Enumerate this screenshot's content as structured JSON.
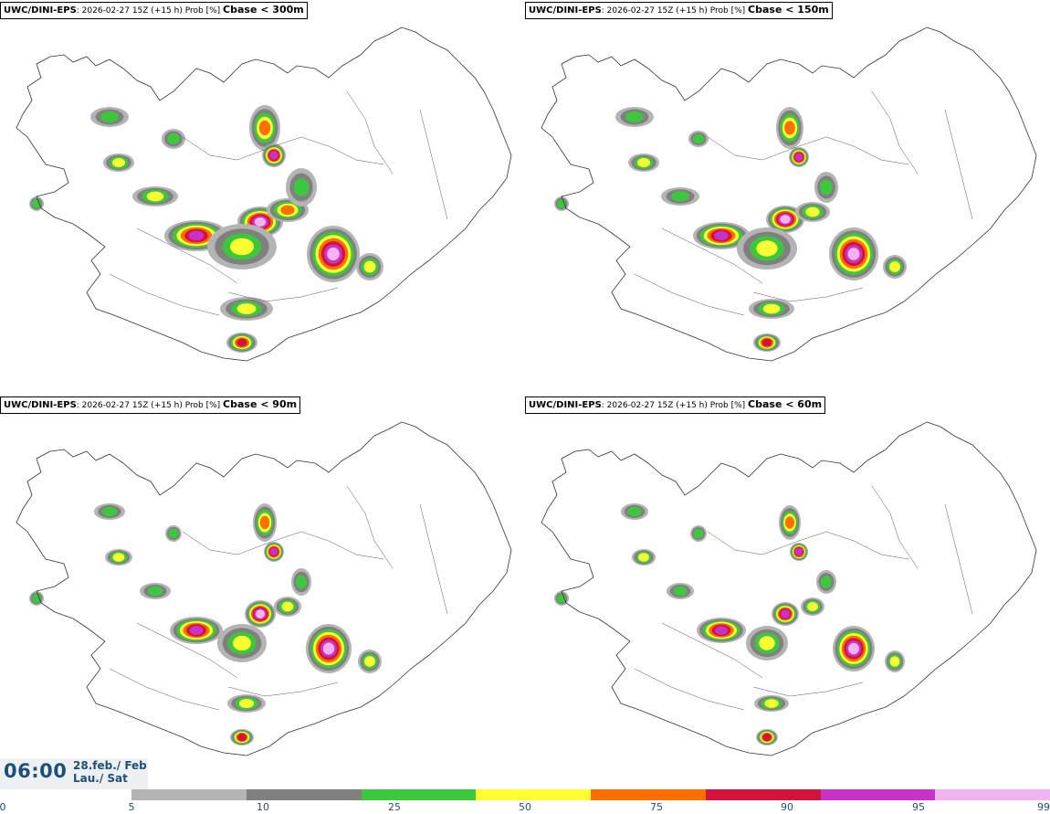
{
  "panels": [
    {
      "model": "UWC/DINI-EPS",
      "info": ": 2026-02-27 15Z (+15 h) Prob [%] ",
      "threshold": "Cbase < 300m"
    },
    {
      "model": "UWC/DINI-EPS",
      "info": ": 2026-02-27 15Z (+15 h) Prob [%] ",
      "threshold": "Cbase < 150m"
    },
    {
      "model": "UWC/DINI-EPS",
      "info": ": 2026-02-27 15Z (+15 h) Prob [%] ",
      "threshold": "Cbase < 90m"
    },
    {
      "model": "UWC/DINI-EPS",
      "info": ": 2026-02-27 15Z (+15 h) Prob [%] ",
      "threshold": "Cbase < 60m"
    }
  ],
  "valid_time": {
    "time": "06:00",
    "date_line1": "28.feb./ Feb",
    "date_line2": "Lau./ Sat"
  },
  "colorbar": {
    "ticks": [
      "0",
      "5",
      "10",
      "25",
      "50",
      "75",
      "90",
      "95",
      "99"
    ],
    "colors": [
      "#b4b4b4",
      "#808080",
      "#3cc83c",
      "#ffff32",
      "#ff6e00",
      "#d2143c",
      "#c832c8",
      "#f0b4f0"
    ]
  }
}
